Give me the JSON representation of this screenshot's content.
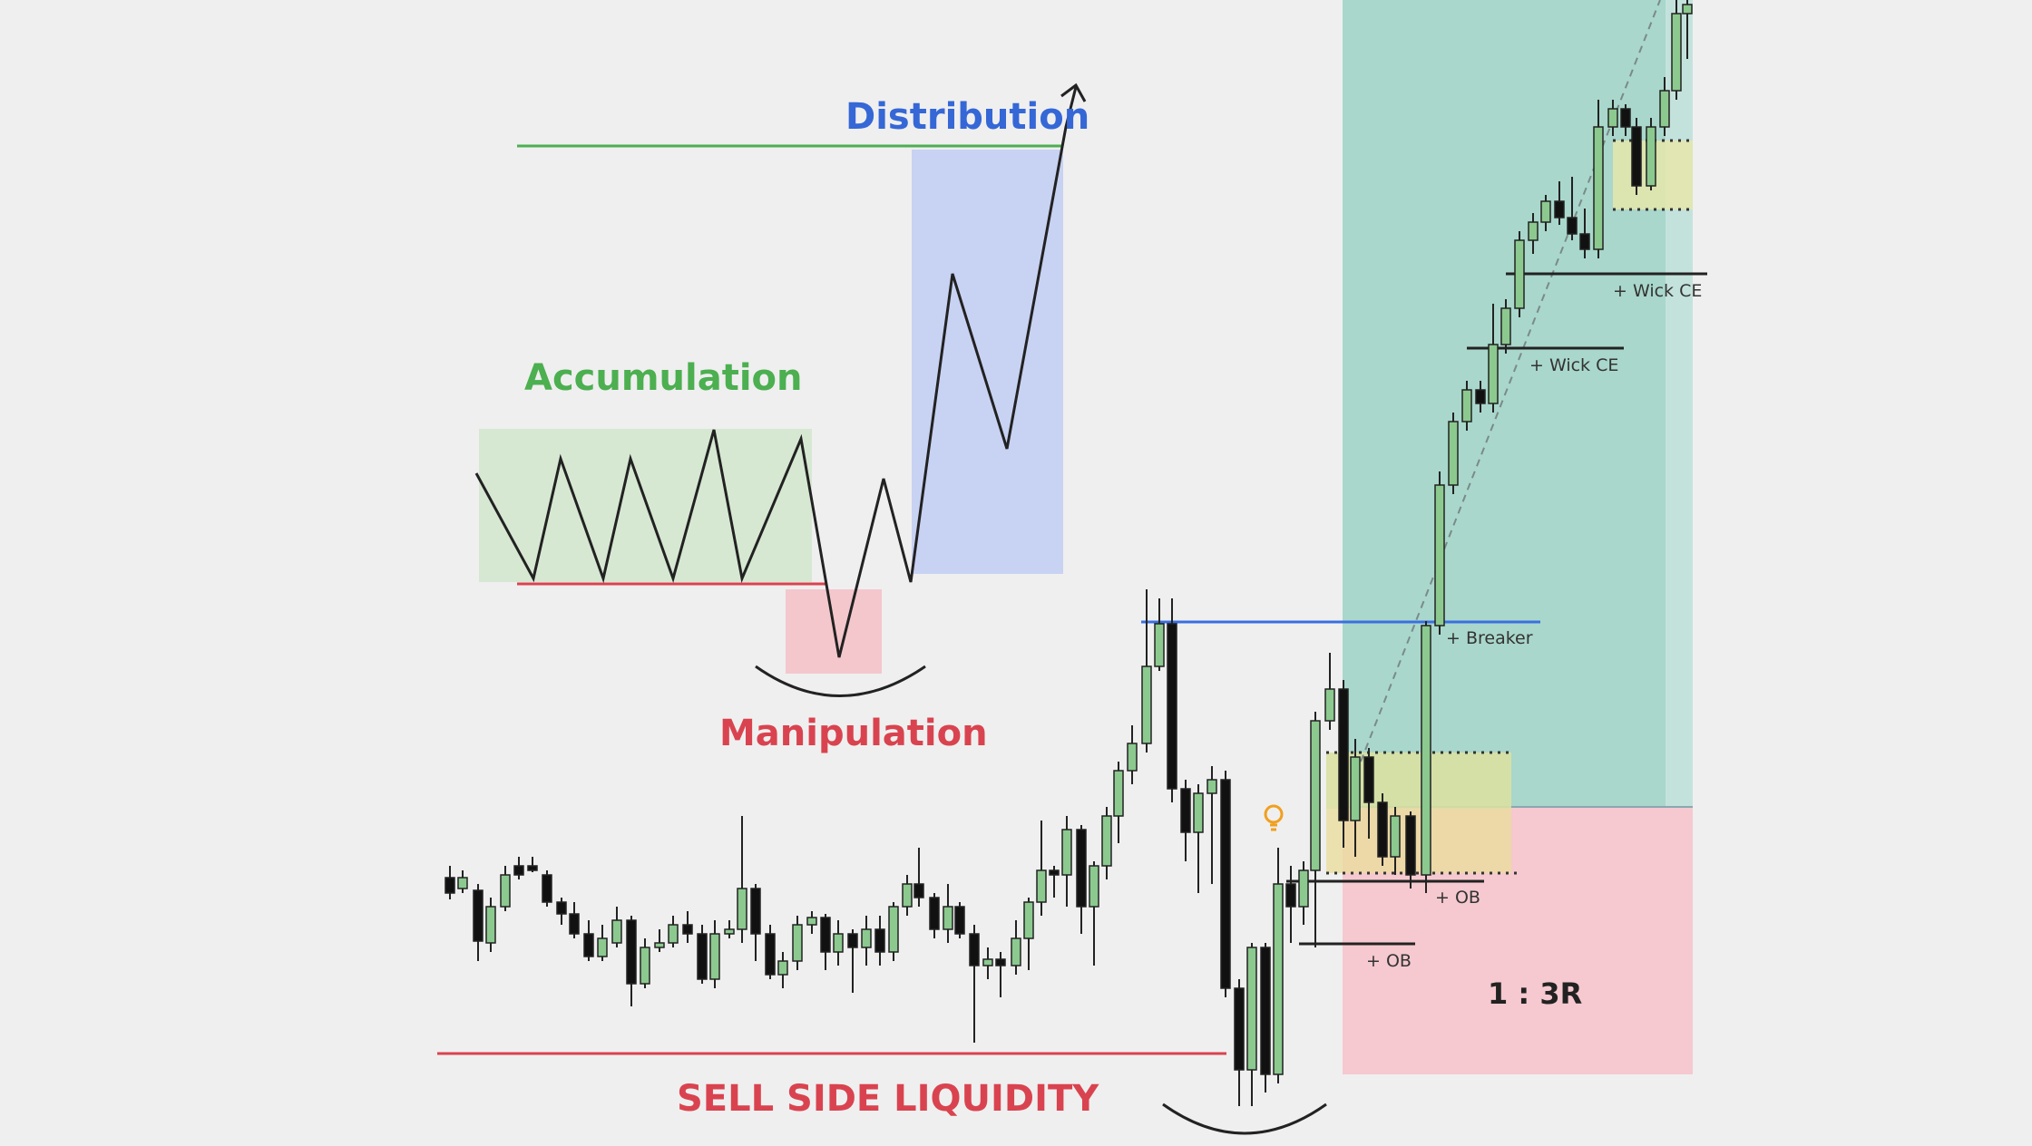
{
  "labels": {
    "distribution": "Distribution",
    "accumulation": "Accumulation",
    "manipulation": "Manipulation",
    "sell_side_liquidity": "SELL SIDE LIQUIDITY",
    "breaker": "+ Breaker",
    "wick_ce_upper": "+ Wick CE",
    "wick_ce_lower": "+ Wick CE",
    "ob_upper": "+ OB",
    "ob_lower": "+ OB",
    "risk_reward": "1 : 3R"
  },
  "icons": {
    "idea": "lightbulb-icon"
  },
  "colors": {
    "background": "#efefef",
    "accumulation_text": "#4caf50",
    "distribution_text": "#3567d6",
    "manipulation_text": "#d9434f",
    "sell_side_text": "#d9434f",
    "accumulation_box": "#d6e8d2",
    "distribution_box": "#c8d2f2",
    "manipulation_box": "#f4c7cd",
    "target_zone": "#a9d7cb",
    "stop_zone": "#f5c9cf",
    "bull_candle": "#8cc98f",
    "bear_candle": "#111111",
    "liquidity_line": "#d9434f",
    "distribution_line": "#4caf50",
    "breaker_line": "#3a6fe0",
    "lightbulb": "#f0a020"
  }
}
